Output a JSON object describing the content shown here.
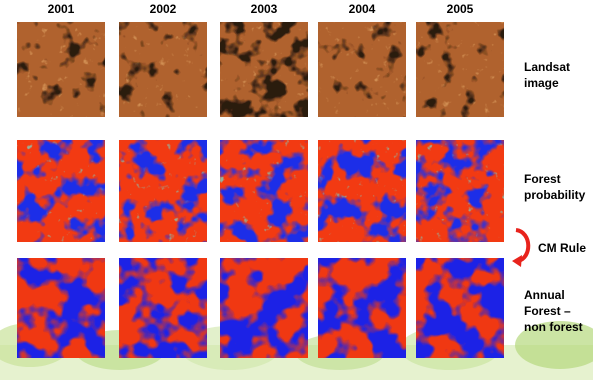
{
  "columns": [
    "2001",
    "2002",
    "2003",
    "2004",
    "2005"
  ],
  "rows": [
    {
      "label_lines": [
        "Landsat",
        "image"
      ]
    },
    {
      "label_lines": [
        "Forest",
        "probability"
      ]
    },
    {
      "label_lines": [
        "Annual",
        "Forest –",
        "non forest"
      ]
    }
  ],
  "transition_label": "CM Rule"
}
